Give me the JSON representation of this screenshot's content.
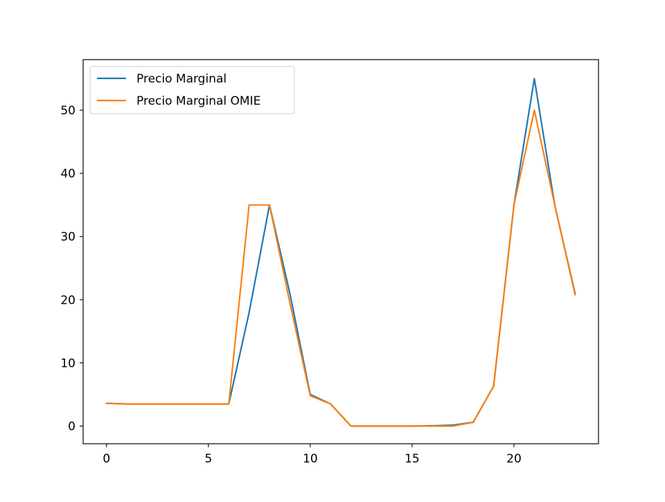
{
  "chart_data": {
    "type": "line",
    "title": "",
    "xlabel": "",
    "ylabel": "",
    "xlim": [
      -1.15,
      24.15
    ],
    "ylim": [
      -2.8,
      58.0
    ],
    "xticks": [
      0,
      5,
      10,
      15,
      20
    ],
    "yticks": [
      0,
      10,
      20,
      30,
      40,
      50
    ],
    "grid": false,
    "legend_position": "upper-left",
    "x": [
      0,
      1,
      2,
      3,
      4,
      5,
      6,
      7,
      8,
      9,
      10,
      11,
      12,
      13,
      14,
      15,
      16,
      17,
      18,
      19,
      20,
      21,
      22,
      23
    ],
    "series": [
      {
        "name": "Precio Marginal",
        "color": "#1f77b4",
        "values": [
          3.6,
          3.5,
          3.5,
          3.5,
          3.5,
          3.5,
          3.5,
          18.0,
          35.0,
          21.0,
          5.0,
          3.5,
          0.0,
          0.0,
          0.0,
          0.0,
          0.05,
          0.15,
          0.6,
          6.3,
          35.0,
          55.0,
          35.0,
          21.0
        ]
      },
      {
        "name": "Precio Marginal OMIE",
        "color": "#ff7f0e",
        "values": [
          3.6,
          3.5,
          3.5,
          3.5,
          3.5,
          3.5,
          3.5,
          35.0,
          35.0,
          19.5,
          4.8,
          3.5,
          0.0,
          0.0,
          0.0,
          0.0,
          0.0,
          0.0,
          0.6,
          6.3,
          35.0,
          50.0,
          35.0,
          20.8
        ]
      }
    ]
  }
}
